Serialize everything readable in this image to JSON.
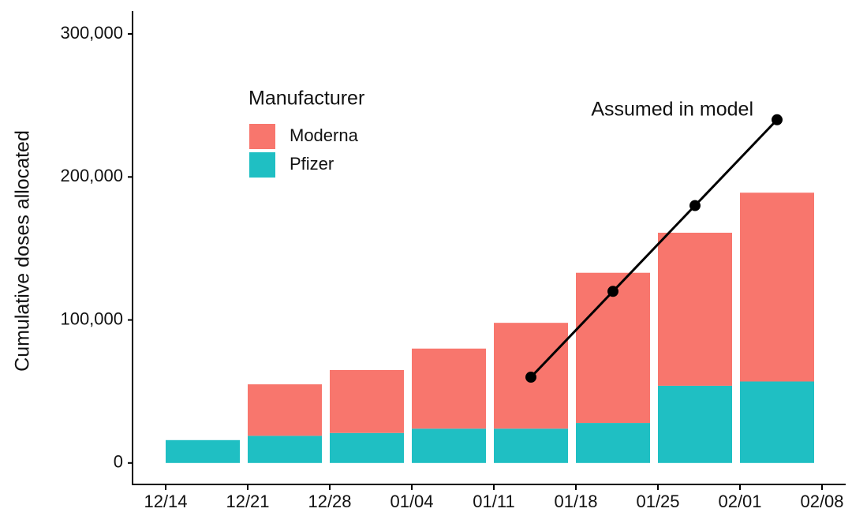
{
  "chart_data": {
    "type": "stacked-bar-line",
    "y_label": "Cumulative doses allocated",
    "categories": [
      "12/14",
      "12/21",
      "12/28",
      "01/04",
      "01/11",
      "01/18",
      "01/25",
      "02/01",
      "02/08"
    ],
    "series": [
      {
        "name": "Moderna",
        "color": "#f8766d",
        "values": [
          0,
          36000,
          44000,
          56000,
          74000,
          105000,
          107000,
          132000,
          null
        ]
      },
      {
        "name": "Pfizer",
        "color": "#1fbfc3",
        "values": [
          16000,
          19000,
          21000,
          24000,
          24000,
          28000,
          54000,
          57000,
          null
        ]
      },
      {
        "name": "Assumed in model",
        "type": "line",
        "color": "#000000",
        "values": [
          null,
          null,
          null,
          null,
          60000,
          120000,
          180000,
          240000,
          null
        ]
      }
    ],
    "legend_title": "Manufacturer",
    "ylim": [
      -15000,
      316000
    ],
    "yticks": [
      {
        "value": 0,
        "label": "0"
      },
      {
        "value": 100000,
        "label": "100,000"
      },
      {
        "value": 200000,
        "label": "200,000"
      },
      {
        "value": 300000,
        "label": "300,000"
      }
    ],
    "grid": false
  }
}
